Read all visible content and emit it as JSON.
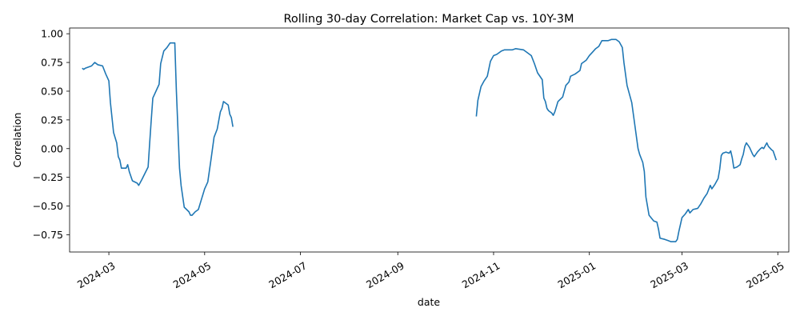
{
  "chart_data": {
    "type": "line",
    "title": "Rolling 30-day Correlation: Market Cap vs. 10Y-3M",
    "xlabel": "date",
    "ylabel": "Correlation",
    "xlim": [
      "2024-02-05",
      "2025-05-08"
    ],
    "ylim": [
      -0.9,
      1.05
    ],
    "grid": false,
    "legend": "none",
    "line_color": "#1f77b4",
    "x_ticks": [
      {
        "date": "2024-03-01",
        "label": "2024-03"
      },
      {
        "date": "2024-05-01",
        "label": "2024-05"
      },
      {
        "date": "2024-07-01",
        "label": "2024-07"
      },
      {
        "date": "2024-09-01",
        "label": "2024-09"
      },
      {
        "date": "2024-11-01",
        "label": "2024-11"
      },
      {
        "date": "2025-01-01",
        "label": "2025-01"
      },
      {
        "date": "2025-03-01",
        "label": "2025-03"
      },
      {
        "date": "2025-05-01",
        "label": "2025-05"
      }
    ],
    "y_ticks": [
      {
        "value": 1.0,
        "label": "1.00"
      },
      {
        "value": 0.75,
        "label": "0.75"
      },
      {
        "value": 0.5,
        "label": "0.50"
      },
      {
        "value": 0.25,
        "label": "0.25"
      },
      {
        "value": 0.0,
        "label": "0.00"
      },
      {
        "value": -0.25,
        "label": "−0.25"
      },
      {
        "value": -0.5,
        "label": "−0.50"
      },
      {
        "value": -0.75,
        "label": "−0.75"
      }
    ],
    "series": [
      {
        "segments": [
          [
            [
              "2024-02-13",
              0.7
            ],
            [
              "2024-02-14",
              0.69
            ],
            [
              "2024-02-15",
              0.7
            ],
            [
              "2024-02-19",
              0.72
            ],
            [
              "2024-02-21",
              0.75
            ],
            [
              "2024-02-23",
              0.73
            ],
            [
              "2024-02-26",
              0.72
            ],
            [
              "2024-02-28",
              0.65
            ],
            [
              "2024-03-01",
              0.59
            ],
            [
              "2024-03-02",
              0.4
            ],
            [
              "2024-03-04",
              0.14
            ],
            [
              "2024-03-06",
              0.05
            ],
            [
              "2024-03-07",
              -0.07
            ],
            [
              "2024-03-08",
              -0.1
            ],
            [
              "2024-03-09",
              -0.17
            ],
            [
              "2024-03-12",
              -0.17
            ],
            [
              "2024-03-13",
              -0.14
            ],
            [
              "2024-03-14",
              -0.2
            ],
            [
              "2024-03-16",
              -0.28
            ],
            [
              "2024-03-19",
              -0.3
            ],
            [
              "2024-03-20",
              -0.32
            ],
            [
              "2024-03-22",
              -0.27
            ],
            [
              "2024-03-26",
              -0.16
            ],
            [
              "2024-03-27",
              0.05
            ],
            [
              "2024-03-28",
              0.25
            ],
            [
              "2024-03-29",
              0.44
            ],
            [
              "2024-04-02",
              0.56
            ],
            [
              "2024-04-03",
              0.74
            ],
            [
              "2024-04-05",
              0.85
            ],
            [
              "2024-04-07",
              0.88
            ],
            [
              "2024-04-09",
              0.92
            ],
            [
              "2024-04-12",
              0.92
            ],
            [
              "2024-04-13",
              0.5
            ],
            [
              "2024-04-15",
              -0.17
            ],
            [
              "2024-04-16",
              -0.32
            ],
            [
              "2024-04-18",
              -0.51
            ],
            [
              "2024-04-21",
              -0.55
            ],
            [
              "2024-04-22",
              -0.58
            ],
            [
              "2024-04-23",
              -0.58
            ],
            [
              "2024-04-25",
              -0.55
            ],
            [
              "2024-04-27",
              -0.53
            ],
            [
              "2024-04-29",
              -0.44
            ],
            [
              "2024-05-01",
              -0.35
            ],
            [
              "2024-05-03",
              -0.29
            ],
            [
              "2024-05-05",
              -0.1
            ],
            [
              "2024-05-07",
              0.1
            ],
            [
              "2024-05-09",
              0.17
            ],
            [
              "2024-05-11",
              0.32
            ],
            [
              "2024-05-12",
              0.35
            ],
            [
              "2024-05-13",
              0.41
            ],
            [
              "2024-05-16",
              0.38
            ],
            [
              "2024-05-17",
              0.3
            ],
            [
              "2024-05-18",
              0.27
            ],
            [
              "2024-05-19",
              0.19
            ]
          ],
          [
            [
              "2024-10-21",
              0.28
            ],
            [
              "2024-10-22",
              0.42
            ],
            [
              "2024-10-24",
              0.54
            ],
            [
              "2024-10-26",
              0.59
            ],
            [
              "2024-10-28",
              0.63
            ],
            [
              "2024-10-30",
              0.76
            ],
            [
              "2024-11-01",
              0.81
            ],
            [
              "2024-11-03",
              0.82
            ],
            [
              "2024-11-06",
              0.85
            ],
            [
              "2024-11-08",
              0.86
            ],
            [
              "2024-11-13",
              0.86
            ],
            [
              "2024-11-15",
              0.87
            ],
            [
              "2024-11-20",
              0.86
            ],
            [
              "2024-11-22",
              0.84
            ],
            [
              "2024-11-25",
              0.81
            ],
            [
              "2024-11-27",
              0.74
            ],
            [
              "2024-11-29",
              0.66
            ],
            [
              "2024-12-02",
              0.6
            ],
            [
              "2024-12-03",
              0.44
            ],
            [
              "2024-12-04",
              0.41
            ],
            [
              "2024-12-05",
              0.35
            ],
            [
              "2024-12-06",
              0.33
            ],
            [
              "2024-12-08",
              0.31
            ],
            [
              "2024-12-09",
              0.29
            ],
            [
              "2024-12-10",
              0.32
            ],
            [
              "2024-12-12",
              0.41
            ],
            [
              "2024-12-15",
              0.45
            ],
            [
              "2024-12-17",
              0.55
            ],
            [
              "2024-12-19",
              0.58
            ],
            [
              "2024-12-20",
              0.63
            ],
            [
              "2024-12-23",
              0.65
            ],
            [
              "2024-12-26",
              0.68
            ],
            [
              "2024-12-27",
              0.74
            ],
            [
              "2024-12-30",
              0.77
            ],
            [
              "2025-01-01",
              0.81
            ],
            [
              "2025-01-03",
              0.84
            ],
            [
              "2025-01-05",
              0.87
            ],
            [
              "2025-01-07",
              0.89
            ],
            [
              "2025-01-09",
              0.94
            ],
            [
              "2025-01-13",
              0.94
            ],
            [
              "2025-01-15",
              0.95
            ],
            [
              "2025-01-18",
              0.95
            ],
            [
              "2025-01-20",
              0.93
            ],
            [
              "2025-01-22",
              0.88
            ],
            [
              "2025-01-23",
              0.75
            ],
            [
              "2025-01-25",
              0.55
            ],
            [
              "2025-01-28",
              0.4
            ],
            [
              "2025-01-30",
              0.2
            ],
            [
              "2025-02-01",
              0.0
            ],
            [
              "2025-02-02",
              -0.05
            ],
            [
              "2025-02-04",
              -0.12
            ],
            [
              "2025-02-05",
              -0.2
            ],
            [
              "2025-02-06",
              -0.42
            ],
            [
              "2025-02-08",
              -0.58
            ],
            [
              "2025-02-11",
              -0.63
            ],
            [
              "2025-02-13",
              -0.64
            ],
            [
              "2025-02-14",
              -0.7
            ],
            [
              "2025-02-15",
              -0.78
            ],
            [
              "2025-02-18",
              -0.79
            ],
            [
              "2025-02-20",
              -0.8
            ],
            [
              "2025-02-22",
              -0.81
            ],
            [
              "2025-02-25",
              -0.81
            ],
            [
              "2025-02-26",
              -0.79
            ],
            [
              "2025-02-27",
              -0.72
            ],
            [
              "2025-03-01",
              -0.6
            ],
            [
              "2025-03-03",
              -0.57
            ],
            [
              "2025-03-05",
              -0.53
            ],
            [
              "2025-03-06",
              -0.56
            ],
            [
              "2025-03-08",
              -0.53
            ],
            [
              "2025-03-11",
              -0.52
            ],
            [
              "2025-03-13",
              -0.48
            ],
            [
              "2025-03-15",
              -0.43
            ],
            [
              "2025-03-17",
              -0.39
            ],
            [
              "2025-03-19",
              -0.32
            ],
            [
              "2025-03-20",
              -0.35
            ],
            [
              "2025-03-22",
              -0.31
            ],
            [
              "2025-03-24",
              -0.26
            ],
            [
              "2025-03-25",
              -0.18
            ],
            [
              "2025-03-26",
              -0.06
            ],
            [
              "2025-03-27",
              -0.04
            ],
            [
              "2025-03-29",
              -0.03
            ],
            [
              "2025-03-31",
              -0.04
            ],
            [
              "2025-04-01",
              -0.02
            ],
            [
              "2025-04-02",
              -0.08
            ],
            [
              "2025-04-03",
              -0.17
            ],
            [
              "2025-04-05",
              -0.16
            ],
            [
              "2025-04-07",
              -0.14
            ],
            [
              "2025-04-08",
              -0.09
            ],
            [
              "2025-04-09",
              -0.05
            ],
            [
              "2025-04-10",
              0.02
            ],
            [
              "2025-04-11",
              0.05
            ],
            [
              "2025-04-13",
              0.01
            ],
            [
              "2025-04-15",
              -0.05
            ],
            [
              "2025-04-16",
              -0.07
            ],
            [
              "2025-04-18",
              -0.03
            ],
            [
              "2025-04-20",
              0.0
            ],
            [
              "2025-04-21",
              0.01
            ],
            [
              "2025-04-22",
              0.0
            ],
            [
              "2025-04-24",
              0.05
            ],
            [
              "2025-04-25",
              0.02
            ],
            [
              "2025-04-27",
              -0.01
            ],
            [
              "2025-04-28",
              -0.02
            ],
            [
              "2025-04-30",
              -0.1
            ]
          ]
        ]
      }
    ]
  }
}
